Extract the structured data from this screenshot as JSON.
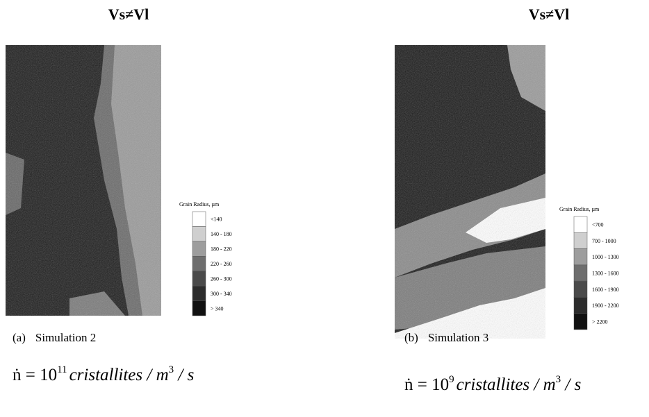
{
  "panels": [
    {
      "title": "Vs≠Vl",
      "legend": {
        "title": "Grain Radius, µm",
        "labels": [
          "<140",
          "140 - 180",
          "180 - 220",
          "220 - 260",
          "260 - 300",
          "300 - 340",
          "> 340"
        ]
      },
      "caption": {
        "label": "(a)",
        "text": "Simulation 2"
      },
      "formula": {
        "lead": "ṅ = 10",
        "exp1": "11",
        "body": "cristallites / m",
        "exp2": "3",
        "tail": " / s"
      }
    },
    {
      "title": "Vs≠Vl",
      "legend": {
        "title": "Grain Radius, µm",
        "labels": [
          "<700",
          "700 - 1000",
          "1000 - 1300",
          "1300 - 1600",
          "1600 - 1900",
          "1900 - 2200",
          "> 2200"
        ]
      },
      "caption": {
        "label": "(b)",
        "text": "Simulation 3"
      },
      "formula": {
        "lead": "ṅ = 10",
        "exp1": "9",
        "body": "cristallites / m",
        "exp2": "3",
        "tail": " / s"
      }
    }
  ]
}
